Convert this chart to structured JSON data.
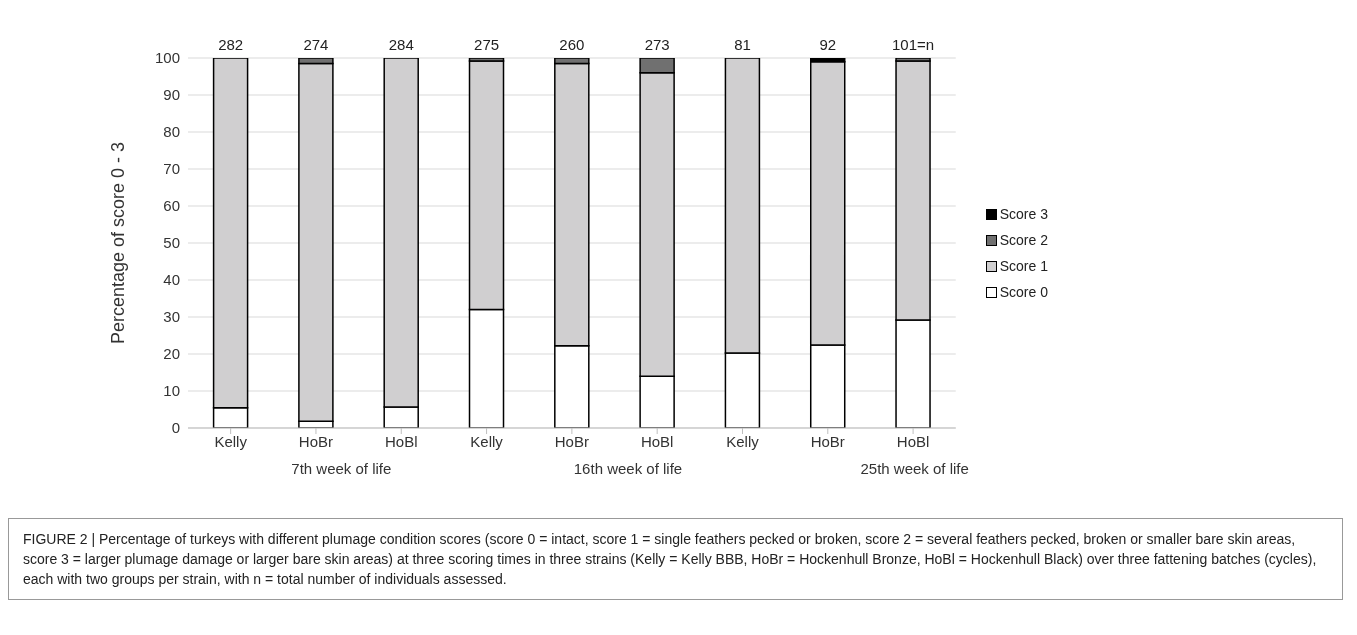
{
  "chart_data": {
    "type": "bar",
    "stacked": true,
    "ylabel": "Percentage of score 0 - 3",
    "categories": [
      "Kelly",
      "HoBr",
      "HoBl",
      "Kelly",
      "HoBr",
      "HoBl",
      "Kelly",
      "HoBr",
      "HoBl"
    ],
    "series": [
      {
        "name": "Score 0",
        "color": "#ffffff",
        "values": [
          5.5,
          1.8,
          5.7,
          32,
          22.2,
          14,
          20.3,
          22.4,
          29.2
        ]
      },
      {
        "name": "Score 1",
        "color": "#d0cfd0",
        "values": [
          94.5,
          96.7,
          94.3,
          67.2,
          76.3,
          82,
          79.7,
          76.6,
          70
        ]
      },
      {
        "name": "Score 2",
        "color": "#707070",
        "values": [
          0,
          1.5,
          0,
          0.8,
          1.5,
          4,
          0,
          0,
          0.8
        ]
      },
      {
        "name": "Score 3",
        "color": "#000000",
        "values": [
          0,
          0,
          0,
          0,
          0,
          0,
          0,
          1,
          0
        ]
      }
    ],
    "ylim": [
      0,
      100
    ],
    "yticks": [
      0,
      10,
      20,
      30,
      40,
      50,
      60,
      70,
      80,
      90,
      100
    ],
    "grid": "y",
    "legend": "right",
    "annotations": [
      "282",
      "274",
      "284",
      "275",
      "260",
      "273",
      "81",
      "92",
      "101=n",
      "7th week of life",
      "16th week of life",
      "25th week of life",
      "FIGURE 2 | Percentage of turkeys with different plumage condition scores (score 0 = intact, score 1 = single feathers pecked or broken, score 2 = several feathers pecked, broken or smaller bare skin areas, score 3 = larger plumage damage or larger bare skin areas) at three scoring times in three strains (Kelly = Kelly BBB, HoBr = Hockenhull Bronze, HoBl = Hockenhull Black) over three fattening batches (cycles), each with two groups per strain, with n = total number of individuals assessed."
    ]
  }
}
